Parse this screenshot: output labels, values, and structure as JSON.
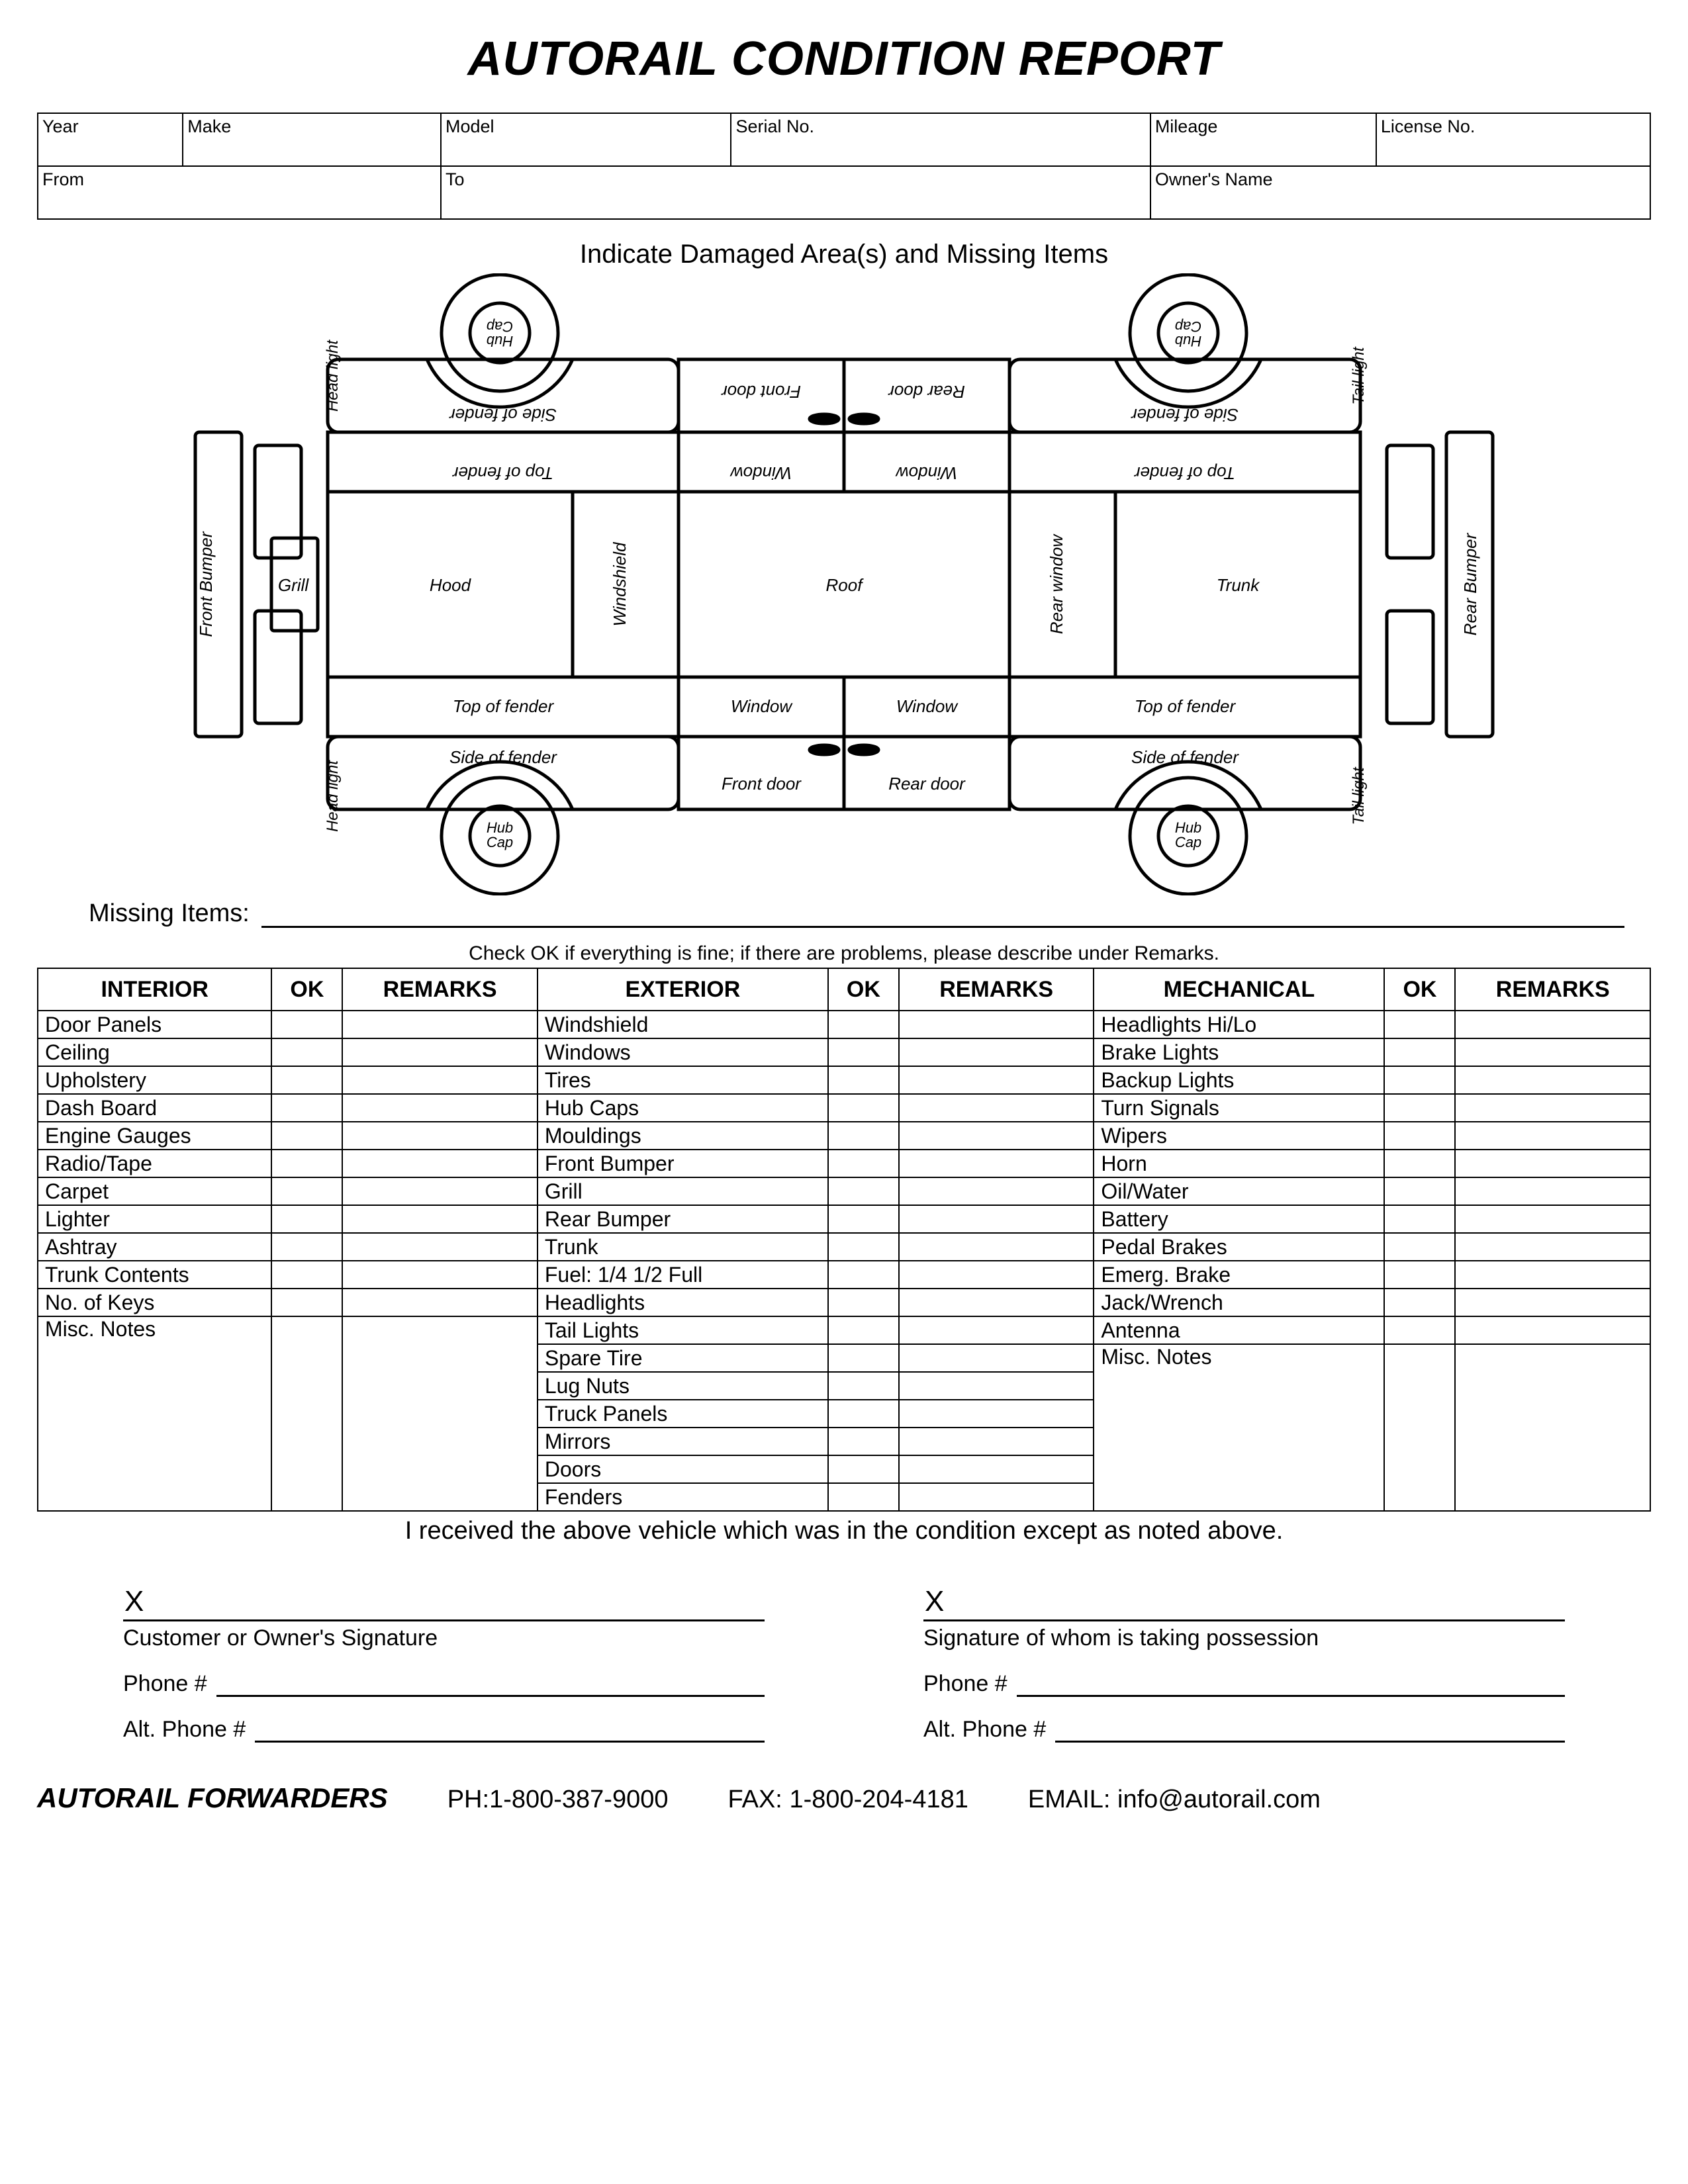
{
  "title": "AUTORAIL CONDITION REPORT",
  "info_row1": [
    "Year",
    "Make",
    "Model",
    "Serial No.",
    "Mileage",
    "License No."
  ],
  "info_row2": [
    "From",
    "To",
    "Owner's Name"
  ],
  "diagram_title": "Indicate Damaged Area(s) and Missing Items",
  "diagram_labels": {
    "front_bumper": "Front Bumper",
    "rear_bumper": "Rear Bumper",
    "head_light": "Head light",
    "tail_light": "Tail light",
    "grill": "Grill",
    "hood": "Hood",
    "windshield": "Windshield",
    "roof": "Roof",
    "rear_window": "Rear window",
    "trunk": "Trunk",
    "top_of_fender": "Top of fender",
    "side_of_fender": "Side of fender",
    "window": "Window",
    "front_door": "Front door",
    "rear_door": "Rear door",
    "hub_cap": "Hub\nCap"
  },
  "missing_label": "Missing Items:",
  "check_instr": "Check OK if everything is fine; if there are problems, please describe under Remarks.",
  "headers": {
    "interior": "INTERIOR",
    "exterior": "EXTERIOR",
    "mechanical": "MECHANICAL",
    "ok": "OK",
    "remarks": "REMARKS"
  },
  "interior": [
    "Door Panels",
    "Ceiling",
    "Upholstery",
    "Dash Board",
    "Engine Gauges",
    "Radio/Tape",
    "Carpet",
    "Lighter",
    "Ashtray",
    "Trunk Contents",
    "No. of Keys",
    "Misc. Notes"
  ],
  "exterior": [
    "Windshield",
    "Windows",
    "Tires",
    "Hub Caps",
    "Mouldings",
    "Front Bumper",
    "Grill",
    "Rear Bumper",
    "Trunk",
    "Fuel: 1/4 1/2 Full",
    "Headlights",
    "Tail Lights",
    "Spare Tire",
    "Lug Nuts",
    "Truck Panels",
    "Mirrors",
    "Doors",
    "Fenders"
  ],
  "mechanical": [
    "Headlights Hi/Lo",
    "Brake Lights",
    "Backup Lights",
    "Turn Signals",
    "Wipers",
    "Horn",
    "Oil/Water",
    "Battery",
    "Pedal Brakes",
    "Emerg. Brake",
    "Jack/Wrench",
    "Antenna",
    "Misc. Notes"
  ],
  "receipt": "I received the above vehicle which was in the condition except as noted above.",
  "sig": {
    "x": "X",
    "customer": "Customer or Owner's Signature",
    "possession": "Signature of whom is taking possession",
    "phone": "Phone  #",
    "alt_phone": "Alt. Phone  #"
  },
  "footer": {
    "company": "AUTORAIL FORWARDERS",
    "ph_label": "PH:",
    "ph": "1-800-387-9000",
    "fax_label": "FAX:",
    "fax": "1-800-204-4181",
    "email_label": "EMAIL:",
    "email": "info@autorail.com"
  }
}
